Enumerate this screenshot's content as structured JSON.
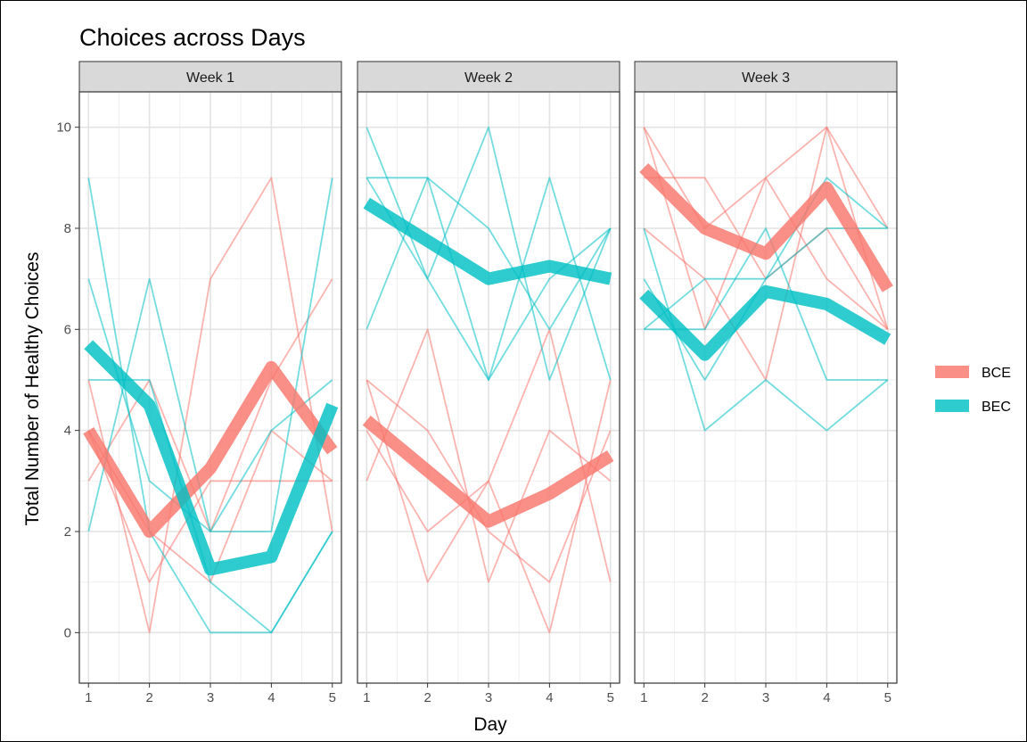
{
  "chart_data": {
    "type": "line",
    "title": "Choices across Days",
    "xlabel": "Day",
    "ylabel": "Total Number of Healthy Choices",
    "x": [
      1,
      2,
      3,
      4,
      5
    ],
    "x_ticks": [
      "1",
      "2",
      "3",
      "4",
      "5"
    ],
    "y_ticks": [
      "0",
      "2",
      "4",
      "6",
      "8",
      "10"
    ],
    "ylim": [
      -1,
      10.7
    ],
    "xlim": [
      0.85,
      5.15
    ],
    "grid": true,
    "legend_position": "right",
    "colors": {
      "BCE": "#F8766D",
      "BEC": "#00BFC4"
    },
    "legend": [
      {
        "label": "BCE",
        "color": "#F8766D"
      },
      {
        "label": "BEC",
        "color": "#00BFC4"
      }
    ],
    "facets": [
      {
        "label": "Week 1",
        "mean_series": [
          {
            "group": "BCE",
            "values": [
              4.0,
              2.0,
              3.25,
              5.25,
              3.6
            ]
          },
          {
            "group": "BEC",
            "values": [
              5.7,
              4.5,
              1.25,
              1.5,
              4.5
            ]
          }
        ],
        "individual_series": [
          {
            "group": "BCE",
            "values": [
              5,
              0,
              7,
              9,
              2
            ]
          },
          {
            "group": "BCE",
            "values": [
              3,
              5,
              2,
              5,
              7
            ]
          },
          {
            "group": "BCE",
            "values": [
              4,
              1,
              3,
              3,
              3
            ]
          },
          {
            "group": "BCE",
            "values": [
              4,
              2,
              1,
              4,
              3
            ]
          },
          {
            "group": "BEC",
            "values": [
              9,
              2,
              0,
              0,
              2
            ]
          },
          {
            "group": "BEC",
            "values": [
              7,
              3,
              2,
              2,
              9
            ]
          },
          {
            "group": "BEC",
            "values": [
              2,
              7,
              2,
              4,
              5
            ]
          },
          {
            "group": "BEC",
            "values": [
              5,
              5,
              1,
              0,
              2
            ]
          }
        ]
      },
      {
        "label": "Week 2",
        "mean_series": [
          {
            "group": "BCE",
            "values": [
              4.2,
              3.2,
              2.2,
              2.75,
              3.5
            ]
          },
          {
            "group": "BEC",
            "values": [
              8.5,
              7.75,
              7.0,
              7.25,
              7.0
            ]
          }
        ],
        "individual_series": [
          {
            "group": "BCE",
            "values": [
              5,
              1,
              3,
              6,
              1
            ]
          },
          {
            "group": "BCE",
            "values": [
              3,
              6,
              1,
              4,
              3
            ]
          },
          {
            "group": "BCE",
            "values": [
              4,
              2,
              3,
              0,
              5
            ]
          },
          {
            "group": "BCE",
            "values": [
              5,
              4,
              2,
              1,
              4
            ]
          },
          {
            "group": "BEC",
            "values": [
              10,
              7,
              10,
              5,
              8
            ]
          },
          {
            "group": "BEC",
            "values": [
              9,
              9,
              5,
              9,
              5
            ]
          },
          {
            "group": "BEC",
            "values": [
              6,
              9,
              8,
              6,
              8
            ]
          },
          {
            "group": "BEC",
            "values": [
              9,
              7,
              5,
              7,
              8
            ]
          }
        ]
      },
      {
        "label": "Week 3",
        "mean_series": [
          {
            "group": "BCE",
            "values": [
              9.2,
              8.0,
              7.5,
              8.8,
              6.8
            ]
          },
          {
            "group": "BEC",
            "values": [
              6.7,
              5.5,
              6.75,
              6.5,
              5.8
            ]
          }
        ],
        "individual_series": [
          {
            "group": "BCE",
            "values": [
              10,
              8,
              9,
              10,
              6
            ]
          },
          {
            "group": "BCE",
            "values": [
              8,
              7,
              5,
              10,
              8
            ]
          },
          {
            "group": "BCE",
            "values": [
              9,
              9,
              7,
              8,
              6
            ]
          },
          {
            "group": "BCE",
            "values": [
              10,
              6,
              9,
              7,
              6
            ]
          },
          {
            "group": "BEC",
            "values": [
              8,
              4,
              5,
              4,
              5
            ]
          },
          {
            "group": "BEC",
            "values": [
              6,
              6,
              8,
              5,
              5
            ]
          },
          {
            "group": "BEC",
            "values": [
              7,
              5,
              7,
              9,
              8
            ]
          },
          {
            "group": "BEC",
            "values": [
              6,
              7,
              7,
              8,
              8
            ]
          }
        ]
      }
    ]
  }
}
